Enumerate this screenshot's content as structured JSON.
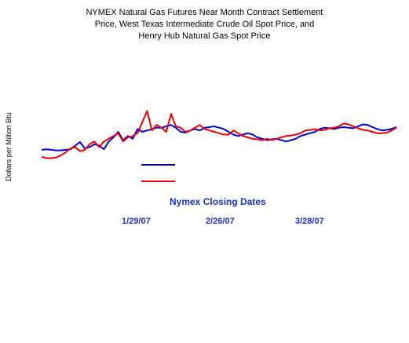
{
  "chart_data": {
    "type": "line",
    "title_lines": [
      "NYMEX Natural Gas Futures Near Month Contract Settlement",
      "Price, West Texas Intermediate Crude Oil Spot Price, and",
      "Henry Hub Natural Gas Spot Price"
    ],
    "xlabel": "Nymex Closing Dates",
    "ylabel": "Dollars per Million Btu",
    "x_tick_labels": [
      "1/29/07",
      "2/26/07",
      "3/28/07"
    ],
    "legend_placement": "center-left",
    "grid": false,
    "series": [
      {
        "color": "#0000dd",
        "values": [
          6.9,
          6.92,
          6.9,
          6.88,
          6.88,
          6.9,
          6.92,
          7.05,
          7.18,
          6.95,
          7.0,
          7.1,
          7.05,
          6.92,
          7.2,
          7.35,
          7.55,
          7.25,
          7.4,
          7.3,
          7.65,
          7.55,
          7.6,
          7.65,
          7.7,
          7.7,
          7.75,
          7.8,
          7.7,
          7.55,
          7.52,
          7.6,
          7.65,
          7.6,
          7.7,
          7.72,
          7.75,
          7.7,
          7.65,
          7.55,
          7.45,
          7.4,
          7.45,
          7.5,
          7.45,
          7.35,
          7.3,
          7.25,
          7.28,
          7.3,
          7.25,
          7.2,
          7.25,
          7.3,
          7.4,
          7.45,
          7.5,
          7.55,
          7.65,
          7.7,
          7.68,
          7.65,
          7.7,
          7.72,
          7.7,
          7.68,
          7.75,
          7.82,
          7.8,
          7.72,
          7.65,
          7.6,
          7.62,
          7.66,
          7.72
        ]
      },
      {
        "color": "#ee0000",
        "values": [
          6.65,
          6.6,
          6.6,
          6.62,
          6.7,
          6.8,
          6.95,
          7.0,
          6.85,
          6.9,
          7.1,
          7.2,
          7.0,
          7.2,
          7.3,
          7.4,
          7.5,
          7.2,
          7.35,
          7.4,
          7.5,
          7.9,
          8.3,
          7.6,
          7.8,
          7.7,
          7.55,
          8.2,
          7.75,
          7.7,
          7.55,
          7.6,
          7.7,
          7.8,
          7.65,
          7.6,
          7.55,
          7.5,
          7.45,
          7.45,
          7.6,
          7.5,
          7.4,
          7.35,
          7.3,
          7.28,
          7.25,
          7.3,
          7.25,
          7.3,
          7.35,
          7.4,
          7.42,
          7.45,
          7.5,
          7.6,
          7.62,
          7.65,
          7.6,
          7.62,
          7.68,
          7.7,
          7.75,
          7.85,
          7.82,
          7.75,
          7.68,
          7.62,
          7.6,
          7.55,
          7.5,
          7.5,
          7.52,
          7.6,
          7.7
        ]
      }
    ]
  }
}
